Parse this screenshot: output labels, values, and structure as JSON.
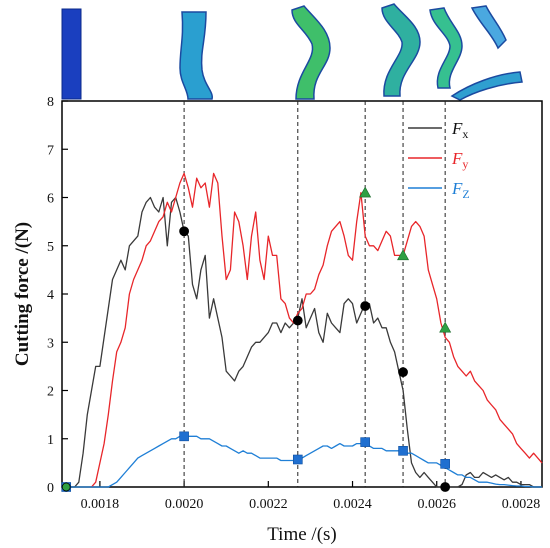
{
  "chart_data": {
    "type": "line",
    "xlabel": "Time /(s)",
    "ylabel": "Cutting force /(N)",
    "xlim": [
      0.00171,
      0.00285
    ],
    "ylim": [
      0,
      8
    ],
    "xticks": [
      "0.0018",
      "0.0020",
      "0.0022",
      "0.0024",
      "0.0026",
      "0.0028"
    ],
    "yticks": [
      "0",
      "1",
      "2",
      "3",
      "4",
      "5",
      "6",
      "7",
      "8"
    ],
    "grid": false,
    "legend_position": "top-right",
    "series": [
      {
        "name": "Fx",
        "name_main": "F",
        "name_sub": "x",
        "color": "#3a3a3a",
        "x": [
          0.00172,
          0.00173,
          0.00174,
          0.00175,
          0.00176,
          0.00177,
          0.00178,
          0.00179,
          0.0018,
          0.00181,
          0.00182,
          0.00183,
          0.00184,
          0.00185,
          0.00186,
          0.00187,
          0.00188,
          0.00189,
          0.0019,
          0.00191,
          0.00192,
          0.00193,
          0.00194,
          0.00195,
          0.00196,
          0.00197,
          0.00198,
          0.00199,
          0.002,
          0.00201,
          0.00202,
          0.00203,
          0.00204,
          0.00205,
          0.00206,
          0.00207,
          0.00208,
          0.00209,
          0.0021,
          0.00211,
          0.00212,
          0.00213,
          0.00214,
          0.00215,
          0.00216,
          0.00217,
          0.00218,
          0.00219,
          0.0022,
          0.00221,
          0.00222,
          0.00223,
          0.00224,
          0.00225,
          0.00226,
          0.00227,
          0.00228,
          0.00229,
          0.0023,
          0.00231,
          0.00232,
          0.00233,
          0.00234,
          0.00235,
          0.00236,
          0.00237,
          0.00238,
          0.00239,
          0.0024,
          0.00241,
          0.00242,
          0.00243,
          0.00244,
          0.00245,
          0.00246,
          0.00247,
          0.00248,
          0.00249,
          0.0025,
          0.00251,
          0.00252,
          0.00253,
          0.00254,
          0.00255,
          0.00256,
          0.00257,
          0.00258,
          0.00259,
          0.0026,
          0.00261,
          0.00262,
          0.00263,
          0.00264,
          0.00265,
          0.00266,
          0.00267,
          0.00268,
          0.00269,
          0.0027,
          0.00271,
          0.00272,
          0.00273,
          0.00274,
          0.00275,
          0.00276,
          0.00277,
          0.00278,
          0.00279,
          0.0028,
          0.00281,
          0.00282,
          0.00283,
          0.00284,
          0.00285
        ],
        "y": [
          0.0,
          0.0,
          0.0,
          0.1,
          0.7,
          1.5,
          2.0,
          2.5,
          2.5,
          3.1,
          3.7,
          4.3,
          4.5,
          4.7,
          4.5,
          5.0,
          5.1,
          5.2,
          5.7,
          5.9,
          6.0,
          5.8,
          5.7,
          6.0,
          5.0,
          5.9,
          6.0,
          5.7,
          5.3,
          5.2,
          4.2,
          3.9,
          4.5,
          4.8,
          3.5,
          3.9,
          3.5,
          3.1,
          2.4,
          2.3,
          2.2,
          2.4,
          2.5,
          2.7,
          2.9,
          3.0,
          3.0,
          3.1,
          3.2,
          3.4,
          3.4,
          3.2,
          3.4,
          3.3,
          3.4,
          3.5,
          3.9,
          3.3,
          3.5,
          3.7,
          3.2,
          3.0,
          3.6,
          3.4,
          3.3,
          3.2,
          3.8,
          3.9,
          3.8,
          3.4,
          3.6,
          3.8,
          3.8,
          3.4,
          3.5,
          3.3,
          3.3,
          3.0,
          2.8,
          2.4,
          2.0,
          1.2,
          0.5,
          0.3,
          0.2,
          0.3,
          0.2,
          0.1,
          0.0,
          0.0,
          0.0,
          0.0,
          0.0,
          0.0,
          0.05,
          0.25,
          0.3,
          0.2,
          0.2,
          0.3,
          0.25,
          0.2,
          0.25,
          0.2,
          0.15,
          0.2,
          0.1,
          0.1,
          0.05,
          0.05,
          0.05,
          0.0,
          0.0,
          0.0
        ]
      },
      {
        "name": "Fy",
        "name_main": "F",
        "name_sub": "y",
        "color": "#e8262a",
        "x": [
          0.00178,
          0.00179,
          0.0018,
          0.00181,
          0.00182,
          0.00183,
          0.00184,
          0.00185,
          0.00186,
          0.00187,
          0.00188,
          0.00189,
          0.0019,
          0.00191,
          0.00192,
          0.00193,
          0.00194,
          0.00195,
          0.00196,
          0.00197,
          0.00198,
          0.00199,
          0.002,
          0.00201,
          0.00202,
          0.00203,
          0.00204,
          0.00205,
          0.00206,
          0.00207,
          0.00208,
          0.00209,
          0.0021,
          0.00211,
          0.00212,
          0.00213,
          0.00214,
          0.00215,
          0.00216,
          0.00217,
          0.00218,
          0.00219,
          0.0022,
          0.00221,
          0.00222,
          0.00223,
          0.00224,
          0.00225,
          0.00226,
          0.00227,
          0.00228,
          0.00229,
          0.0023,
          0.00231,
          0.00232,
          0.00233,
          0.00234,
          0.00235,
          0.00236,
          0.00237,
          0.00238,
          0.00239,
          0.0024,
          0.00241,
          0.00242,
          0.00243,
          0.00244,
          0.00245,
          0.00246,
          0.00247,
          0.00248,
          0.00249,
          0.0025,
          0.00251,
          0.00252,
          0.00253,
          0.00254,
          0.00255,
          0.00256,
          0.00257,
          0.00258,
          0.00259,
          0.0026,
          0.00261,
          0.00262,
          0.00263,
          0.00264,
          0.00265,
          0.00266,
          0.00267,
          0.00268,
          0.00269,
          0.0027,
          0.00271,
          0.00272,
          0.00273,
          0.00274,
          0.00275,
          0.00276,
          0.00277,
          0.00278,
          0.00279,
          0.0028,
          0.00281,
          0.00282,
          0.00283,
          0.00284,
          0.00285
        ],
        "y": [
          0.0,
          0.1,
          0.5,
          0.9,
          1.5,
          2.2,
          2.8,
          3.0,
          3.3,
          4.0,
          4.3,
          4.5,
          4.7,
          5.0,
          5.1,
          5.3,
          5.5,
          5.6,
          5.9,
          5.7,
          6.0,
          6.3,
          6.5,
          6.2,
          5.8,
          6.4,
          6.2,
          6.3,
          5.8,
          6.5,
          6.3,
          5.2,
          4.3,
          4.5,
          5.7,
          5.5,
          5.0,
          4.3,
          5.2,
          5.7,
          4.7,
          4.3,
          5.2,
          4.8,
          4.8,
          3.9,
          3.8,
          3.5,
          3.4,
          3.6,
          3.7,
          4.0,
          4.0,
          4.1,
          4.4,
          4.6,
          5.0,
          5.3,
          5.4,
          5.5,
          5.2,
          4.8,
          4.7,
          5.5,
          6.1,
          5.2,
          5.0,
          5.0,
          4.9,
          5.1,
          5.3,
          5.2,
          4.8,
          4.8,
          4.8,
          5.1,
          5.4,
          5.5,
          5.4,
          5.2,
          4.5,
          4.2,
          3.9,
          3.4,
          3.1,
          3.0,
          2.7,
          2.5,
          2.4,
          2.3,
          2.4,
          2.2,
          2.1,
          2.0,
          1.8,
          1.7,
          1.6,
          1.4,
          1.3,
          1.2,
          1.1,
          0.9,
          0.8,
          0.7,
          0.6,
          0.7,
          0.6,
          0.5
        ]
      },
      {
        "name": "FZ",
        "name_main": "F",
        "name_sub": "Z",
        "color": "#1f7fd6",
        "x": [
          0.00171,
          0.00172,
          0.00173,
          0.00174,
          0.00175,
          0.00176,
          0.00177,
          0.00178,
          0.00179,
          0.0018,
          0.00181,
          0.00182,
          0.00183,
          0.00184,
          0.00185,
          0.00186,
          0.00187,
          0.00188,
          0.00189,
          0.0019,
          0.00191,
          0.00192,
          0.00193,
          0.00194,
          0.00195,
          0.00196,
          0.00197,
          0.00198,
          0.00199,
          0.002,
          0.00201,
          0.00202,
          0.00203,
          0.00204,
          0.00205,
          0.00206,
          0.00207,
          0.00208,
          0.00209,
          0.0021,
          0.00211,
          0.00212,
          0.00213,
          0.00214,
          0.00215,
          0.00216,
          0.00217,
          0.00218,
          0.00219,
          0.0022,
          0.00221,
          0.00222,
          0.00223,
          0.00224,
          0.00225,
          0.00226,
          0.00227,
          0.00228,
          0.00229,
          0.0023,
          0.00231,
          0.00232,
          0.00233,
          0.00234,
          0.00235,
          0.00236,
          0.00237,
          0.00238,
          0.00239,
          0.0024,
          0.00241,
          0.00242,
          0.00243,
          0.00244,
          0.00245,
          0.00246,
          0.00247,
          0.00248,
          0.00249,
          0.0025,
          0.00251,
          0.00252,
          0.00253,
          0.00254,
          0.00255,
          0.00256,
          0.00257,
          0.00258,
          0.00259,
          0.0026,
          0.00261,
          0.00262,
          0.00263,
          0.00264,
          0.00265,
          0.00266,
          0.00267,
          0.00268,
          0.00269,
          0.0027,
          0.00271,
          0.00272,
          0.00273,
          0.00274,
          0.00275,
          0.00276,
          0.00277,
          0.00278,
          0.00279,
          0.0028,
          0.00281,
          0.00282,
          0.00283,
          0.00284,
          0.00285
        ],
        "y": [
          0.0,
          0.0,
          0.0,
          0.0,
          0.0,
          0.0,
          0.0,
          0.0,
          0.0,
          0.0,
          0.0,
          0.0,
          0.05,
          0.1,
          0.2,
          0.3,
          0.4,
          0.5,
          0.6,
          0.65,
          0.7,
          0.75,
          0.8,
          0.85,
          0.9,
          0.95,
          1.0,
          1.0,
          1.05,
          1.05,
          1.05,
          1.05,
          1.05,
          1.0,
          1.0,
          1.0,
          0.95,
          0.9,
          0.85,
          0.85,
          0.8,
          0.75,
          0.7,
          0.75,
          0.7,
          0.7,
          0.65,
          0.6,
          0.6,
          0.6,
          0.6,
          0.6,
          0.55,
          0.55,
          0.55,
          0.55,
          0.55,
          0.6,
          0.65,
          0.7,
          0.75,
          0.8,
          0.85,
          0.85,
          0.8,
          0.85,
          0.9,
          0.85,
          0.85,
          0.85,
          0.9,
          0.9,
          0.9,
          0.85,
          0.8,
          0.8,
          0.8,
          0.75,
          0.75,
          0.75,
          0.75,
          0.75,
          0.7,
          0.7,
          0.65,
          0.6,
          0.55,
          0.5,
          0.5,
          0.5,
          0.45,
          0.4,
          0.35,
          0.3,
          0.25,
          0.25,
          0.2,
          0.2,
          0.15,
          0.1,
          0.1,
          0.1,
          0.08,
          0.06,
          0.05,
          0.05,
          0.04,
          0.03,
          0.02,
          0.02,
          0.01,
          0.01,
          0.0,
          0.0,
          0.0
        ]
      }
    ],
    "markers": [
      {
        "series": "Fx",
        "shape": "circle",
        "color": "#000000",
        "points": [
          [
            0.00172,
            0.0
          ],
          [
            0.002,
            5.3
          ],
          [
            0.00227,
            3.45
          ],
          [
            0.00243,
            3.75
          ],
          [
            0.00252,
            2.38
          ],
          [
            0.00262,
            0.0
          ]
        ]
      },
      {
        "series": "Fy",
        "shape": "triangle",
        "color": "#2ea043",
        "points": [
          [
            0.00243,
            6.1
          ],
          [
            0.00252,
            4.8
          ],
          [
            0.00262,
            3.3
          ]
        ]
      },
      {
        "series": "FZ",
        "shape": "square",
        "color": "#1f6fd0",
        "points": [
          [
            0.00172,
            0.0
          ],
          [
            0.002,
            1.05
          ],
          [
            0.00227,
            0.57
          ],
          [
            0.00243,
            0.93
          ],
          [
            0.00252,
            0.75
          ],
          [
            0.00262,
            0.48
          ]
        ]
      }
    ],
    "reference_lines_x": [
      0.002,
      0.00227,
      0.00243,
      0.00252,
      0.00262
    ]
  }
}
